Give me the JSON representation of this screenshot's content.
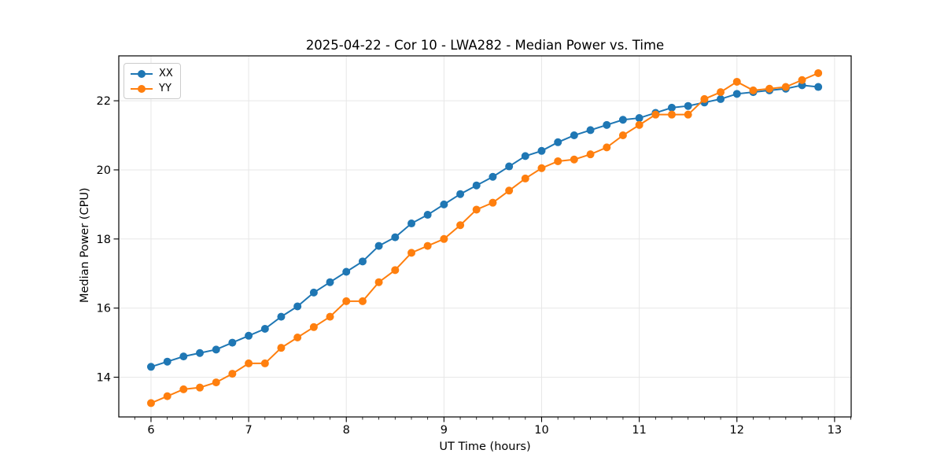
{
  "chart_data": {
    "type": "line",
    "title": "2025-04-22 - Cor 10 - LWA282 - Median Power vs. Time",
    "xlabel": "UT Time (hours)",
    "ylabel": "Median Power (CPU)",
    "xlim": [
      5.67,
      13.17
    ],
    "ylim": [
      12.85,
      23.3
    ],
    "x_ticks": [
      6,
      7,
      8,
      9,
      10,
      11,
      12,
      13
    ],
    "y_ticks": [
      14,
      16,
      18,
      20,
      22
    ],
    "x_minor_ticks_per_hour": 6,
    "grid": true,
    "grid_color": "#e7e7e7",
    "legend_position": "upper left",
    "x": [
      6.0,
      6.167,
      6.333,
      6.5,
      6.667,
      6.833,
      7.0,
      7.167,
      7.333,
      7.5,
      7.667,
      7.833,
      8.0,
      8.167,
      8.333,
      8.5,
      8.667,
      8.833,
      9.0,
      9.167,
      9.333,
      9.5,
      9.667,
      9.833,
      10.0,
      10.167,
      10.333,
      10.5,
      10.667,
      10.833,
      11.0,
      11.167,
      11.333,
      11.5,
      11.667,
      11.833,
      12.0,
      12.167,
      12.333,
      12.5,
      12.667,
      12.833
    ],
    "series": [
      {
        "name": "XX",
        "color": "#1f77b4",
        "values": [
          14.3,
          14.45,
          14.6,
          14.7,
          14.8,
          15.0,
          15.2,
          15.4,
          15.75,
          16.05,
          16.45,
          16.75,
          17.05,
          17.35,
          17.8,
          18.05,
          18.45,
          18.7,
          19.0,
          19.3,
          19.55,
          19.8,
          20.1,
          20.4,
          20.55,
          20.8,
          21.0,
          21.15,
          21.3,
          21.45,
          21.5,
          21.65,
          21.8,
          21.85,
          21.95,
          22.05,
          22.2,
          22.25,
          22.3,
          22.35,
          22.45,
          22.4
        ]
      },
      {
        "name": "YY",
        "color": "#ff7f0e",
        "values": [
          13.25,
          13.45,
          13.65,
          13.7,
          13.85,
          14.1,
          14.4,
          14.4,
          14.85,
          15.15,
          15.45,
          15.75,
          16.2,
          16.2,
          16.75,
          17.1,
          17.6,
          17.8,
          18.0,
          18.4,
          18.85,
          19.05,
          19.4,
          19.75,
          20.05,
          20.25,
          20.3,
          20.45,
          20.65,
          21.0,
          21.3,
          21.6,
          21.6,
          21.6,
          22.05,
          22.25,
          22.55,
          22.3,
          22.35,
          22.4,
          22.6,
          22.8
        ]
      }
    ]
  }
}
